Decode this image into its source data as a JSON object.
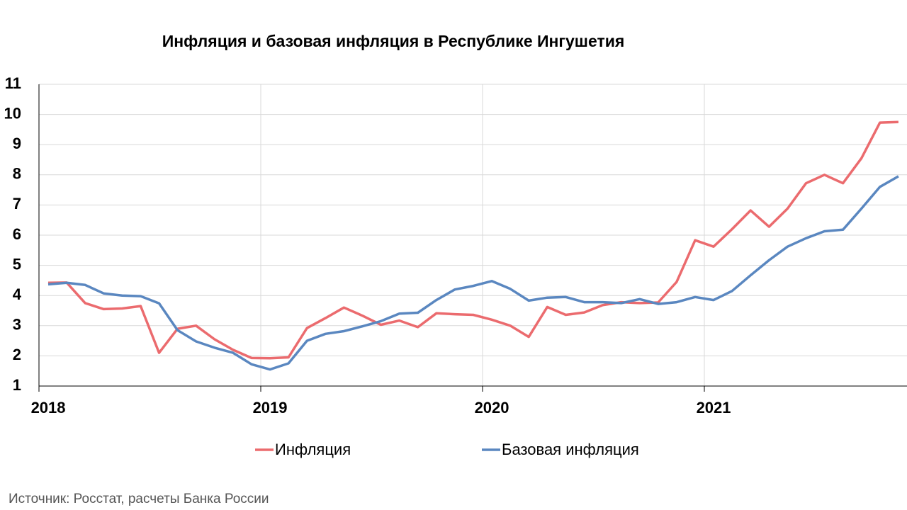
{
  "chart_data": {
    "type": "line",
    "title": "Инфляция и базовая инфляция в Республике Ингушетия",
    "source": "Источник: Росстат, расчеты Банка России",
    "categories": [
      "2018",
      null,
      null,
      null,
      null,
      null,
      null,
      null,
      null,
      null,
      null,
      null,
      "2019",
      null,
      null,
      null,
      null,
      null,
      null,
      null,
      null,
      null,
      null,
      null,
      "2020",
      null,
      null,
      null,
      null,
      null,
      null,
      null,
      null,
      null,
      null,
      null,
      "2021",
      null,
      null,
      null,
      null,
      null,
      null,
      null,
      null,
      null,
      null
    ],
    "series": [
      {
        "name": "Инфляция",
        "color": "#eb6b6e",
        "values": [
          4.42,
          4.43,
          3.75,
          3.55,
          3.57,
          3.65,
          2.1,
          2.9,
          3.0,
          2.55,
          2.2,
          1.93,
          1.92,
          1.95,
          2.92,
          3.25,
          3.6,
          3.33,
          3.03,
          3.17,
          2.95,
          3.41,
          3.38,
          3.36,
          3.2,
          3.0,
          2.63,
          3.62,
          3.36,
          3.44,
          3.68,
          3.78,
          3.75,
          3.77,
          4.45,
          5.83,
          5.62,
          6.2,
          6.82,
          6.28,
          6.88,
          7.72,
          8.0,
          7.72,
          8.55,
          9.73,
          9.75
        ]
      },
      {
        "name": "Базовая инфляция",
        "color": "#5a87c0",
        "values": [
          4.37,
          4.42,
          4.35,
          4.07,
          4.0,
          3.98,
          3.74,
          2.85,
          2.48,
          2.27,
          2.1,
          1.72,
          1.55,
          1.75,
          2.5,
          2.73,
          2.82,
          2.98,
          3.15,
          3.4,
          3.43,
          3.85,
          4.2,
          4.32,
          4.48,
          4.22,
          3.83,
          3.93,
          3.95,
          3.78,
          3.78,
          3.75,
          3.88,
          3.72,
          3.78,
          3.95,
          3.85,
          4.15,
          4.67,
          5.17,
          5.62,
          5.9,
          6.13,
          6.18,
          6.88,
          7.6,
          7.95
        ]
      }
    ],
    "ylim": [
      1,
      11
    ],
    "yticks": [
      1,
      2,
      3,
      4,
      5,
      6,
      7,
      8,
      9,
      10,
      11
    ],
    "grid": true,
    "legend": "bottom"
  }
}
